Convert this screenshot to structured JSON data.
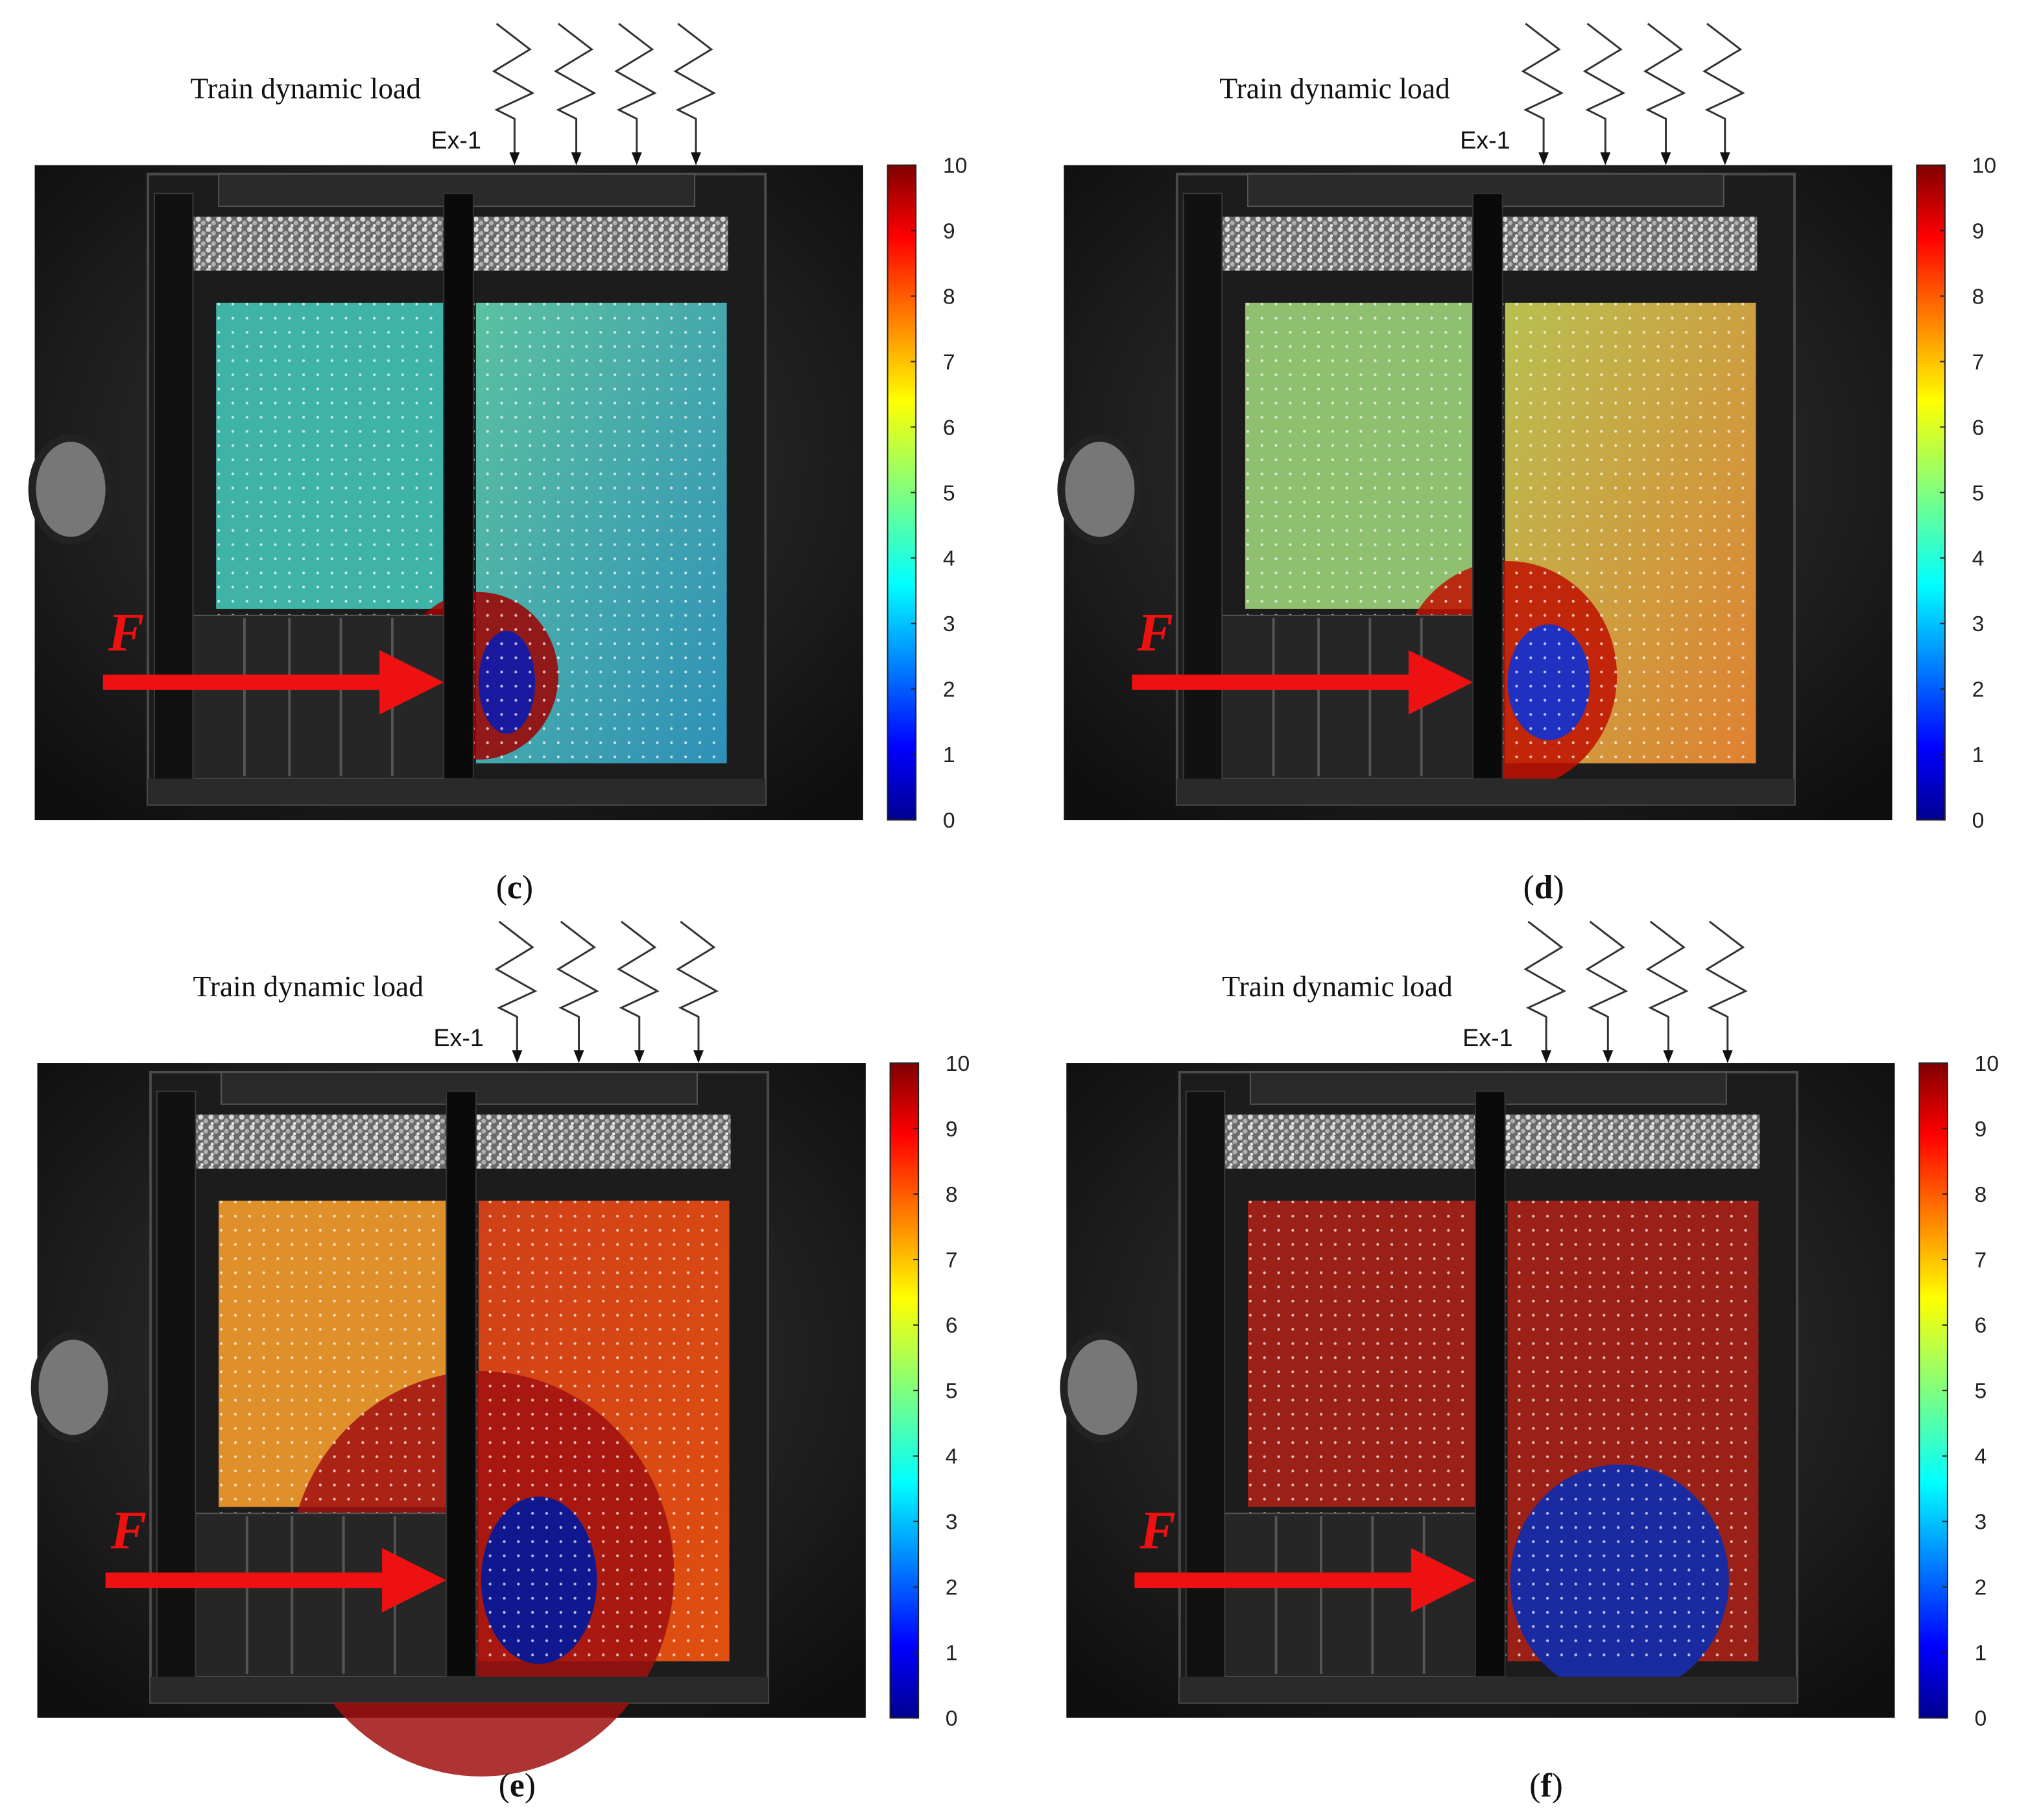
{
  "panels": [
    {
      "load_label": "Train dynamic load",
      "experiment": "Ex-1",
      "force": "F",
      "colorbar_ticks": [
        0,
        1,
        2,
        3,
        4,
        5,
        6,
        7,
        8,
        9,
        10
      ],
      "caption": [
        "(",
        "c",
        ")"
      ]
    },
    {
      "load_label": "Train dynamic load",
      "experiment": "Ex-1",
      "force": "F",
      "colorbar_ticks": [
        0,
        1,
        2,
        3,
        4,
        5,
        6,
        7,
        8,
        9,
        10
      ],
      "caption": [
        "(",
        "d",
        ")"
      ]
    },
    {
      "load_label": "Train dynamic load",
      "experiment": "Ex-1",
      "force": "F",
      "colorbar_ticks": [
        0,
        1,
        2,
        3,
        4,
        5,
        6,
        7,
        8,
        9,
        10
      ],
      "caption": [
        "(",
        "e",
        ")"
      ]
    },
    {
      "load_label": "Train dynamic load",
      "experiment": "Ex-1",
      "force": "F",
      "colorbar_ticks": [
        0,
        1,
        2,
        3,
        4,
        5,
        6,
        7,
        8,
        9,
        10
      ],
      "caption": [
        "(",
        "f",
        ")"
      ]
    }
  ]
}
